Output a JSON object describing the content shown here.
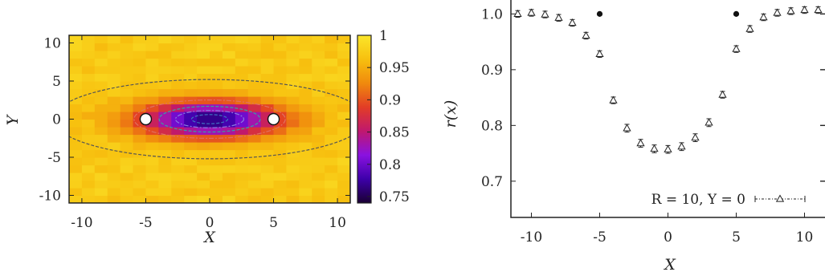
{
  "chart_data": [
    {
      "type": "heatmap",
      "xlabel": "X",
      "ylabel": "Y",
      "xlim": [
        -11,
        11
      ],
      "ylim": [
        -11,
        11
      ],
      "xticks": [
        -10,
        -5,
        0,
        5,
        10
      ],
      "yticks": [
        -10,
        -5,
        0,
        5,
        10
      ],
      "colorbar": {
        "min": 0.74,
        "max": 1.0,
        "ticks": [
          0.75,
          0.8,
          0.85,
          0.9,
          0.95,
          1
        ]
      },
      "colormap": [
        "#1a0033",
        "#3d00aa",
        "#8a12e0",
        "#c0186e",
        "#e23d26",
        "#f08a0d",
        "#f7c00f",
        "#fbe62a"
      ],
      "markers": [
        {
          "x": -5,
          "y": 0
        },
        {
          "x": 5,
          "y": 0
        }
      ],
      "field": {
        "baseline": 0.972,
        "dip_depth": 0.215,
        "dip_sigma_x": 4.0,
        "dip_sigma_y": 1.7
      },
      "contours": [
        {
          "level": 0.97,
          "color": "#555555"
        },
        {
          "level": 0.9,
          "color": "#e07060"
        },
        {
          "level": 0.84,
          "color": "#3aa0a0"
        },
        {
          "level": 0.8,
          "color": "#8a7be0"
        },
        {
          "level": 0.77,
          "color": "#4070c0"
        }
      ]
    },
    {
      "type": "scatter",
      "xlabel": "X",
      "ylabel": "r(x)",
      "xlim": [
        -11.5,
        11.5
      ],
      "ylim": [
        0.635,
        1.025
      ],
      "xticks": [
        -10,
        -5,
        0,
        5,
        10
      ],
      "yticks": [
        0.7,
        0.8,
        0.9,
        1.0
      ],
      "ytick_labels": [
        "0.7",
        "0.8",
        "0.9",
        "1.0"
      ],
      "series": [
        {
          "name": "R = 10, Y = 0",
          "marker": "triangle",
          "x": [
            -11,
            -10,
            -9,
            -8,
            -7,
            -6,
            -5,
            -4,
            -3,
            -2,
            -1,
            0,
            1,
            2,
            3,
            4,
            5,
            6,
            7,
            8,
            9,
            10,
            11
          ],
          "y": [
            1.0,
            1.002,
            0.999,
            0.993,
            0.984,
            0.961,
            0.928,
            0.845,
            0.795,
            0.768,
            0.758,
            0.757,
            0.762,
            0.778,
            0.805,
            0.855,
            0.937,
            0.973,
            0.994,
            1.002,
            1.005,
            1.007,
            1.007
          ],
          "err": [
            0.006,
            0.006,
            0.006,
            0.006,
            0.006,
            0.006,
            0.006,
            0.006,
            0.007,
            0.007,
            0.007,
            0.007,
            0.007,
            0.007,
            0.007,
            0.006,
            0.006,
            0.006,
            0.006,
            0.006,
            0.006,
            0.006,
            0.006
          ]
        },
        {
          "marker": "dot",
          "x": [
            -5,
            5
          ],
          "y": [
            1.0,
            1.0
          ]
        }
      ],
      "legend": "bottom-right"
    }
  ],
  "colors": {
    "axis": "#222222",
    "marker_fill": "#ffffff",
    "dot": "#111111"
  }
}
